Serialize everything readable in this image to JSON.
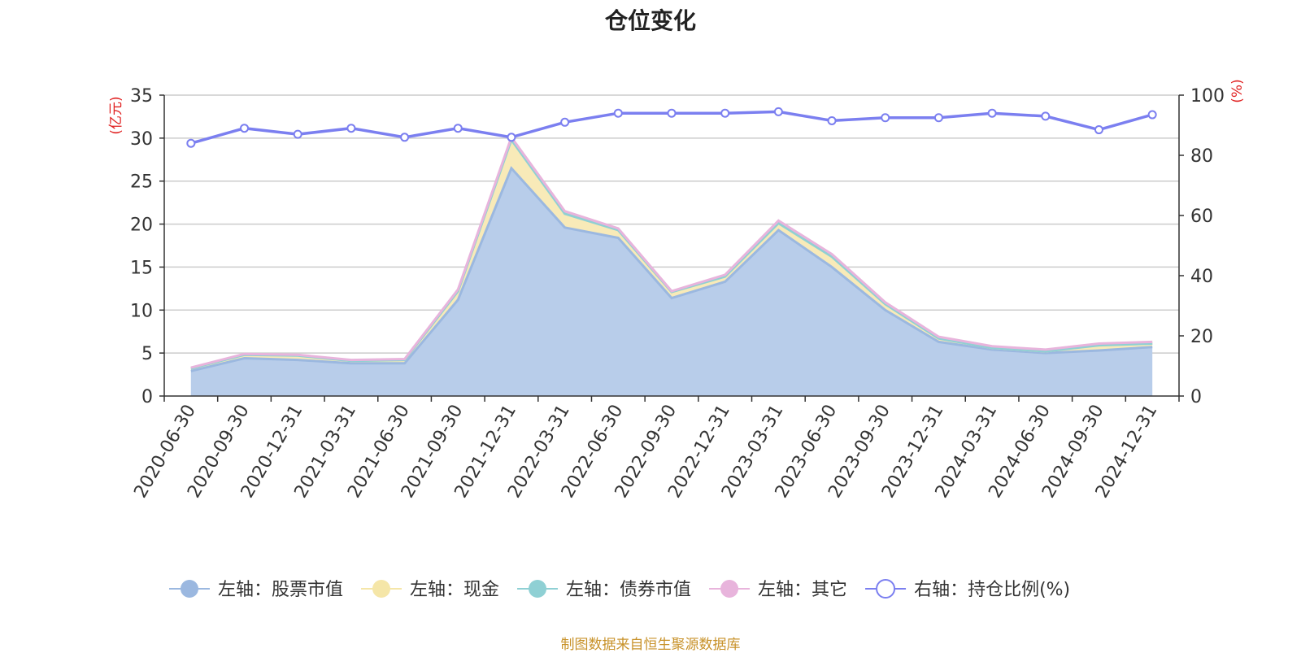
{
  "title": "仓位变化",
  "source": "制图数据来自恒生聚源数据库",
  "chart_data": {
    "type": "area",
    "title": "仓位变化",
    "categories": [
      "2020-06-30",
      "2020-09-30",
      "2020-12-31",
      "2021-03-31",
      "2021-06-30",
      "2021-09-30",
      "2021-12-31",
      "2022-03-31",
      "2022-06-30",
      "2022-09-30",
      "2022-12-31",
      "2023-03-31",
      "2023-06-30",
      "2023-09-30",
      "2023-12-31",
      "2024-03-31",
      "2024-06-30",
      "2024-09-30",
      "2024-12-31"
    ],
    "left_axis": {
      "label": "(亿元)",
      "min": 0,
      "max": 35,
      "ticks": [
        0,
        5,
        10,
        15,
        20,
        25,
        30,
        35
      ]
    },
    "right_axis": {
      "label": "(%)",
      "min": 0,
      "max": 100,
      "ticks": [
        0,
        20,
        40,
        60,
        80,
        100
      ]
    },
    "stacked": true,
    "grid": true,
    "legend_position": "bottom",
    "series": [
      {
        "name": "左轴：股票市值",
        "axis": "left",
        "color": "#9bb8e0",
        "fill": "#b8cdea",
        "values": [
          2.9,
          4.4,
          4.2,
          3.8,
          3.8,
          11.2,
          26.5,
          19.6,
          18.4,
          11.4,
          13.3,
          19.3,
          15.0,
          10.0,
          6.3,
          5.4,
          5.0,
          5.3,
          5.7
        ]
      },
      {
        "name": "左轴：现金",
        "axis": "left",
        "color": "#f5e6a8",
        "fill": "#f8eab8",
        "values": [
          0.3,
          0.4,
          0.5,
          0.3,
          0.4,
          1.0,
          3.3,
          1.6,
          0.9,
          0.7,
          0.6,
          0.8,
          1.2,
          0.7,
          0.4,
          0.2,
          0.2,
          0.6,
          0.4
        ]
      },
      {
        "name": "左轴：债券市值",
        "axis": "left",
        "color": "#8fd0d4",
        "fill": "#a8dcdf",
        "values": [
          0,
          0,
          0,
          0,
          0,
          0,
          0,
          0,
          0,
          0,
          0,
          0,
          0,
          0,
          0,
          0,
          0,
          0,
          0
        ]
      },
      {
        "name": "左轴：其它",
        "axis": "left",
        "color": "#e8b4dc",
        "fill": "#eec4e4",
        "values": [
          0.1,
          0.1,
          0.1,
          0.1,
          0.1,
          0.2,
          0.3,
          0.3,
          0.2,
          0.1,
          0.2,
          0.3,
          0.3,
          0.2,
          0.2,
          0.2,
          0.2,
          0.2,
          0.2
        ]
      },
      {
        "name": "右轴：持仓比例(%)",
        "axis": "right",
        "color": "#7b7ff0",
        "type": "line",
        "values": [
          84,
          89,
          87,
          89,
          86,
          89,
          86,
          91,
          94,
          94,
          94,
          94.5,
          91.5,
          92.5,
          92.5,
          94,
          93,
          88.5,
          93.5
        ]
      }
    ]
  }
}
